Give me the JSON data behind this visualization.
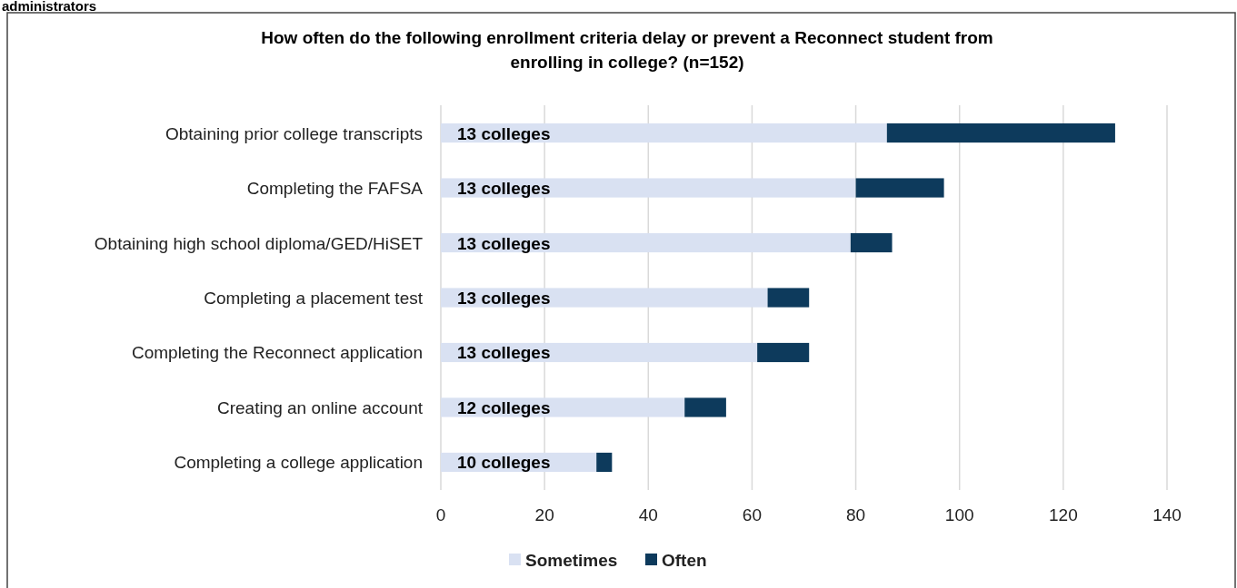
{
  "chart_data": {
    "type": "bar",
    "orientation": "horizontal",
    "stacked": true,
    "title": "How often do the following enrollment criteria delay or prevent a Reconnect student from enrolling in college? (n=152)",
    "annotations": [
      "administrators",
      "13 colleges",
      "13 colleges",
      "13 colleges",
      "13 colleges",
      "13 colleges",
      "12 colleges",
      "10 colleges"
    ],
    "categories": [
      "Obtaining prior college transcripts",
      "Completing the FAFSA",
      "Obtaining high school diploma/GED/HiSET",
      "Completing a placement test",
      "Completing the Reconnect application",
      "Creating an online account",
      "Completing a college application"
    ],
    "series": [
      {
        "name": "Sometimes",
        "color": "#d9e1f2",
        "values": [
          86,
          80,
          79,
          63,
          61,
          47,
          30
        ]
      },
      {
        "name": "Often",
        "color": "#0d3a5c",
        "values": [
          44,
          17,
          8,
          8,
          10,
          8,
          3
        ]
      }
    ],
    "xlim": [
      0,
      140
    ],
    "xticks": [
      0,
      20,
      40,
      60,
      80,
      100,
      120,
      140
    ],
    "grid": "x",
    "legend": "bottom"
  }
}
